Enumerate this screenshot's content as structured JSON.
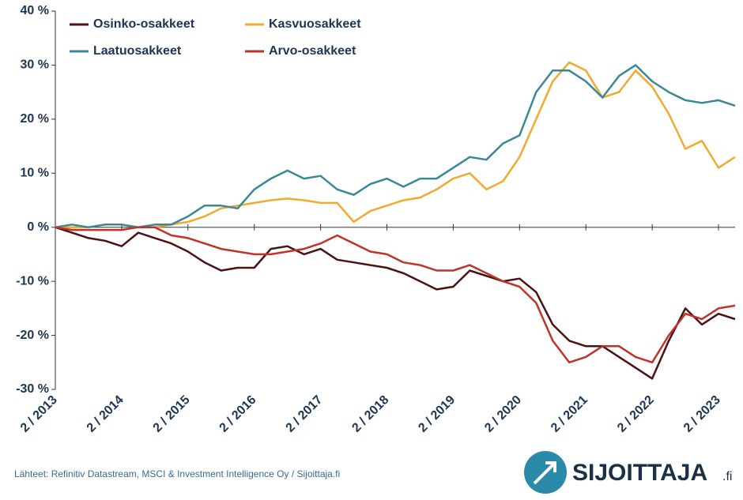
{
  "chart_data": {
    "type": "line",
    "x": [
      "2013-02",
      "2013-05",
      "2013-08",
      "2013-11",
      "2014-02",
      "2014-05",
      "2014-08",
      "2014-11",
      "2015-02",
      "2015-05",
      "2015-08",
      "2015-11",
      "2016-02",
      "2016-05",
      "2016-08",
      "2016-11",
      "2017-02",
      "2017-05",
      "2017-08",
      "2017-11",
      "2018-02",
      "2018-05",
      "2018-08",
      "2018-11",
      "2019-02",
      "2019-05",
      "2019-08",
      "2019-11",
      "2020-02",
      "2020-05",
      "2020-08",
      "2020-11",
      "2021-02",
      "2021-05",
      "2021-08",
      "2021-11",
      "2022-02",
      "2022-05",
      "2022-08",
      "2022-11",
      "2023-02",
      "2023-05"
    ],
    "series": [
      {
        "name": "Osinko-osakkeet",
        "color": "#4a1212",
        "values": [
          0,
          -1,
          -2,
          -2.5,
          -3.5,
          -1,
          -2,
          -3,
          -4.5,
          -6.5,
          -8,
          -7.5,
          -7.5,
          -4,
          -3.5,
          -5,
          -4,
          -6,
          -6.5,
          -7,
          -7.5,
          -8.5,
          -10,
          -11.5,
          -11,
          -8,
          -9,
          -10,
          -9.5,
          -12,
          -18,
          -21,
          -22,
          -22,
          -24,
          -26,
          -28,
          -21,
          -15,
          -18,
          -16,
          -17
        ]
      },
      {
        "name": "Kasvuosakkeet",
        "color": "#f0aa2e",
        "values": [
          0,
          0,
          0,
          0.5,
          0.5,
          0,
          0,
          0.5,
          1,
          2,
          3.5,
          4,
          4.5,
          5,
          5.3,
          5,
          4.5,
          4.5,
          1,
          3,
          4,
          5,
          5.5,
          7,
          9,
          10,
          7,
          8.5,
          13,
          20,
          27,
          30.5,
          29,
          24,
          25,
          29,
          26,
          21,
          14.5,
          16,
          11,
          13
        ]
      },
      {
        "name": "Laatuosakkeet",
        "color": "#3a8797",
        "values": [
          0,
          0.5,
          0,
          0.5,
          0.5,
          0,
          0.5,
          0.5,
          2,
          4,
          4,
          3.5,
          7,
          9,
          10.5,
          9,
          9.5,
          7,
          6,
          8,
          9,
          7.5,
          9,
          9,
          11,
          13,
          12.5,
          15.5,
          17,
          25,
          29,
          29,
          27,
          24,
          28,
          30,
          27,
          25,
          23.5,
          23,
          23.5,
          22.5
        ]
      },
      {
        "name": "Arvo-osakkeet",
        "color": "#c0322a",
        "values": [
          0,
          -0.5,
          -0.5,
          -0.5,
          -0.5,
          0,
          0,
          -1.5,
          -2,
          -3,
          -4,
          -4.5,
          -5,
          -5,
          -4.5,
          -4,
          -3,
          -1.5,
          -3,
          -4.5,
          -5,
          -6.5,
          -7,
          -8,
          -8,
          -7,
          -8.5,
          -10,
          -11,
          -14,
          -21,
          -25,
          -24,
          -22,
          -22,
          -24,
          -25,
          -20,
          -16,
          -17,
          -15,
          -14.5
        ]
      }
    ],
    "xlim": [
      "2013-02",
      "2023-05"
    ],
    "xticks": [
      {
        "value": "2013-02",
        "label": "2 / 2013"
      },
      {
        "value": "2014-02",
        "label": "2 / 2014"
      },
      {
        "value": "2015-02",
        "label": "2 / 2015"
      },
      {
        "value": "2016-02",
        "label": "2 / 2016"
      },
      {
        "value": "2017-02",
        "label": "2 / 2017"
      },
      {
        "value": "2018-02",
        "label": "2 / 2018"
      },
      {
        "value": "2019-02",
        "label": "2 / 2019"
      },
      {
        "value": "2020-02",
        "label": "2 / 2020"
      },
      {
        "value": "2021-02",
        "label": "2 / 2021"
      },
      {
        "value": "2022-02",
        "label": "2 / 2022"
      },
      {
        "value": "2023-02",
        "label": "2 / 2023"
      }
    ],
    "ylim": [
      -30,
      40
    ],
    "yticks": [
      {
        "value": -30,
        "label": "-30 %"
      },
      {
        "value": -20,
        "label": "-20 %"
      },
      {
        "value": -10,
        "label": "-10 %"
      },
      {
        "value": 0,
        "label": "0 %"
      },
      {
        "value": 10,
        "label": "10 %"
      },
      {
        "value": 20,
        "label": "20 %"
      },
      {
        "value": 30,
        "label": "30 %"
      },
      {
        "value": 40,
        "label": "40 %"
      }
    ],
    "grid": false
  },
  "source": "Lähteet: Refinitiv Datastream, MSCI & Investment Intelligence Oy / Sijoittaja.fi",
  "logo": {
    "name": "SIJOITTAJA",
    "suffix": ".fi"
  }
}
